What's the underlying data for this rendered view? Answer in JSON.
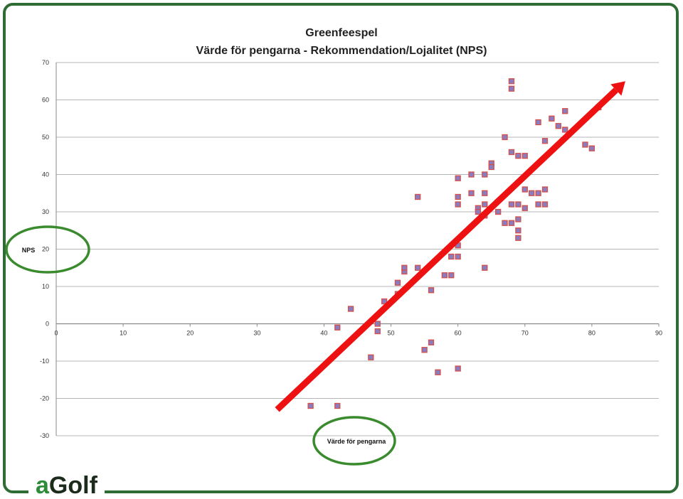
{
  "chart_data": {
    "type": "scatter",
    "title": "Greenfeespel",
    "subtitle": "Värde för pengarna - Rekommendation/Lojalitet (NPS)",
    "xlabel": "Värde för pengarna",
    "ylabel": "NPS",
    "xlim": [
      0,
      90
    ],
    "ylim": [
      -30,
      70
    ],
    "xticks": [
      0,
      10,
      20,
      30,
      40,
      50,
      60,
      70,
      80,
      90
    ],
    "yticks": [
      -30,
      -20,
      -10,
      0,
      10,
      20,
      30,
      40,
      50,
      60,
      70
    ],
    "grid": "horizontal",
    "point_color": "#8b7cc0",
    "point_edge": "#d4504a",
    "points": [
      [
        38,
        -22
      ],
      [
        42,
        -22
      ],
      [
        42,
        -1
      ],
      [
        44,
        4
      ],
      [
        47,
        -9
      ],
      [
        48,
        0
      ],
      [
        48,
        -2
      ],
      [
        49,
        6
      ],
      [
        51,
        11
      ],
      [
        51,
        8
      ],
      [
        52,
        14
      ],
      [
        52,
        15
      ],
      [
        54,
        34
      ],
      [
        54,
        15
      ],
      [
        55,
        -7
      ],
      [
        56,
        -5
      ],
      [
        56,
        9
      ],
      [
        57,
        -13
      ],
      [
        58,
        13
      ],
      [
        59,
        13
      ],
      [
        59,
        18
      ],
      [
        60,
        18
      ],
      [
        60,
        21
      ],
      [
        60,
        32
      ],
      [
        60,
        34
      ],
      [
        60,
        39
      ],
      [
        60,
        -12
      ],
      [
        62,
        35
      ],
      [
        62,
        40
      ],
      [
        63,
        31
      ],
      [
        63,
        30
      ],
      [
        64,
        40
      ],
      [
        64,
        35
      ],
      [
        64,
        32
      ],
      [
        64,
        29
      ],
      [
        64,
        15
      ],
      [
        65,
        43
      ],
      [
        65,
        42
      ],
      [
        66,
        30
      ],
      [
        67,
        50
      ],
      [
        67,
        27
      ],
      [
        68,
        65
      ],
      [
        68,
        63
      ],
      [
        68,
        46
      ],
      [
        68,
        32
      ],
      [
        68,
        27
      ],
      [
        69,
        45
      ],
      [
        69,
        32
      ],
      [
        69,
        28
      ],
      [
        69,
        25
      ],
      [
        69,
        23
      ],
      [
        70,
        45
      ],
      [
        70,
        36
      ],
      [
        70,
        31
      ],
      [
        71,
        35
      ],
      [
        72,
        54
      ],
      [
        72,
        35
      ],
      [
        72,
        32
      ],
      [
        73,
        49
      ],
      [
        73,
        36
      ],
      [
        73,
        32
      ],
      [
        74,
        55
      ],
      [
        75,
        53
      ],
      [
        76,
        57
      ],
      [
        76,
        52
      ],
      [
        79,
        48
      ],
      [
        80,
        47
      ],
      [
        81,
        58
      ]
    ],
    "trend_arrow": {
      "from": [
        33,
        -23
      ],
      "to": [
        85,
        65
      ],
      "color": "#ee1111"
    },
    "highlight_color": "#3a8a2e"
  },
  "brand": {
    "logo_a": "a",
    "logo_rest": "Golf",
    "frame_color": "#2e6b35"
  }
}
